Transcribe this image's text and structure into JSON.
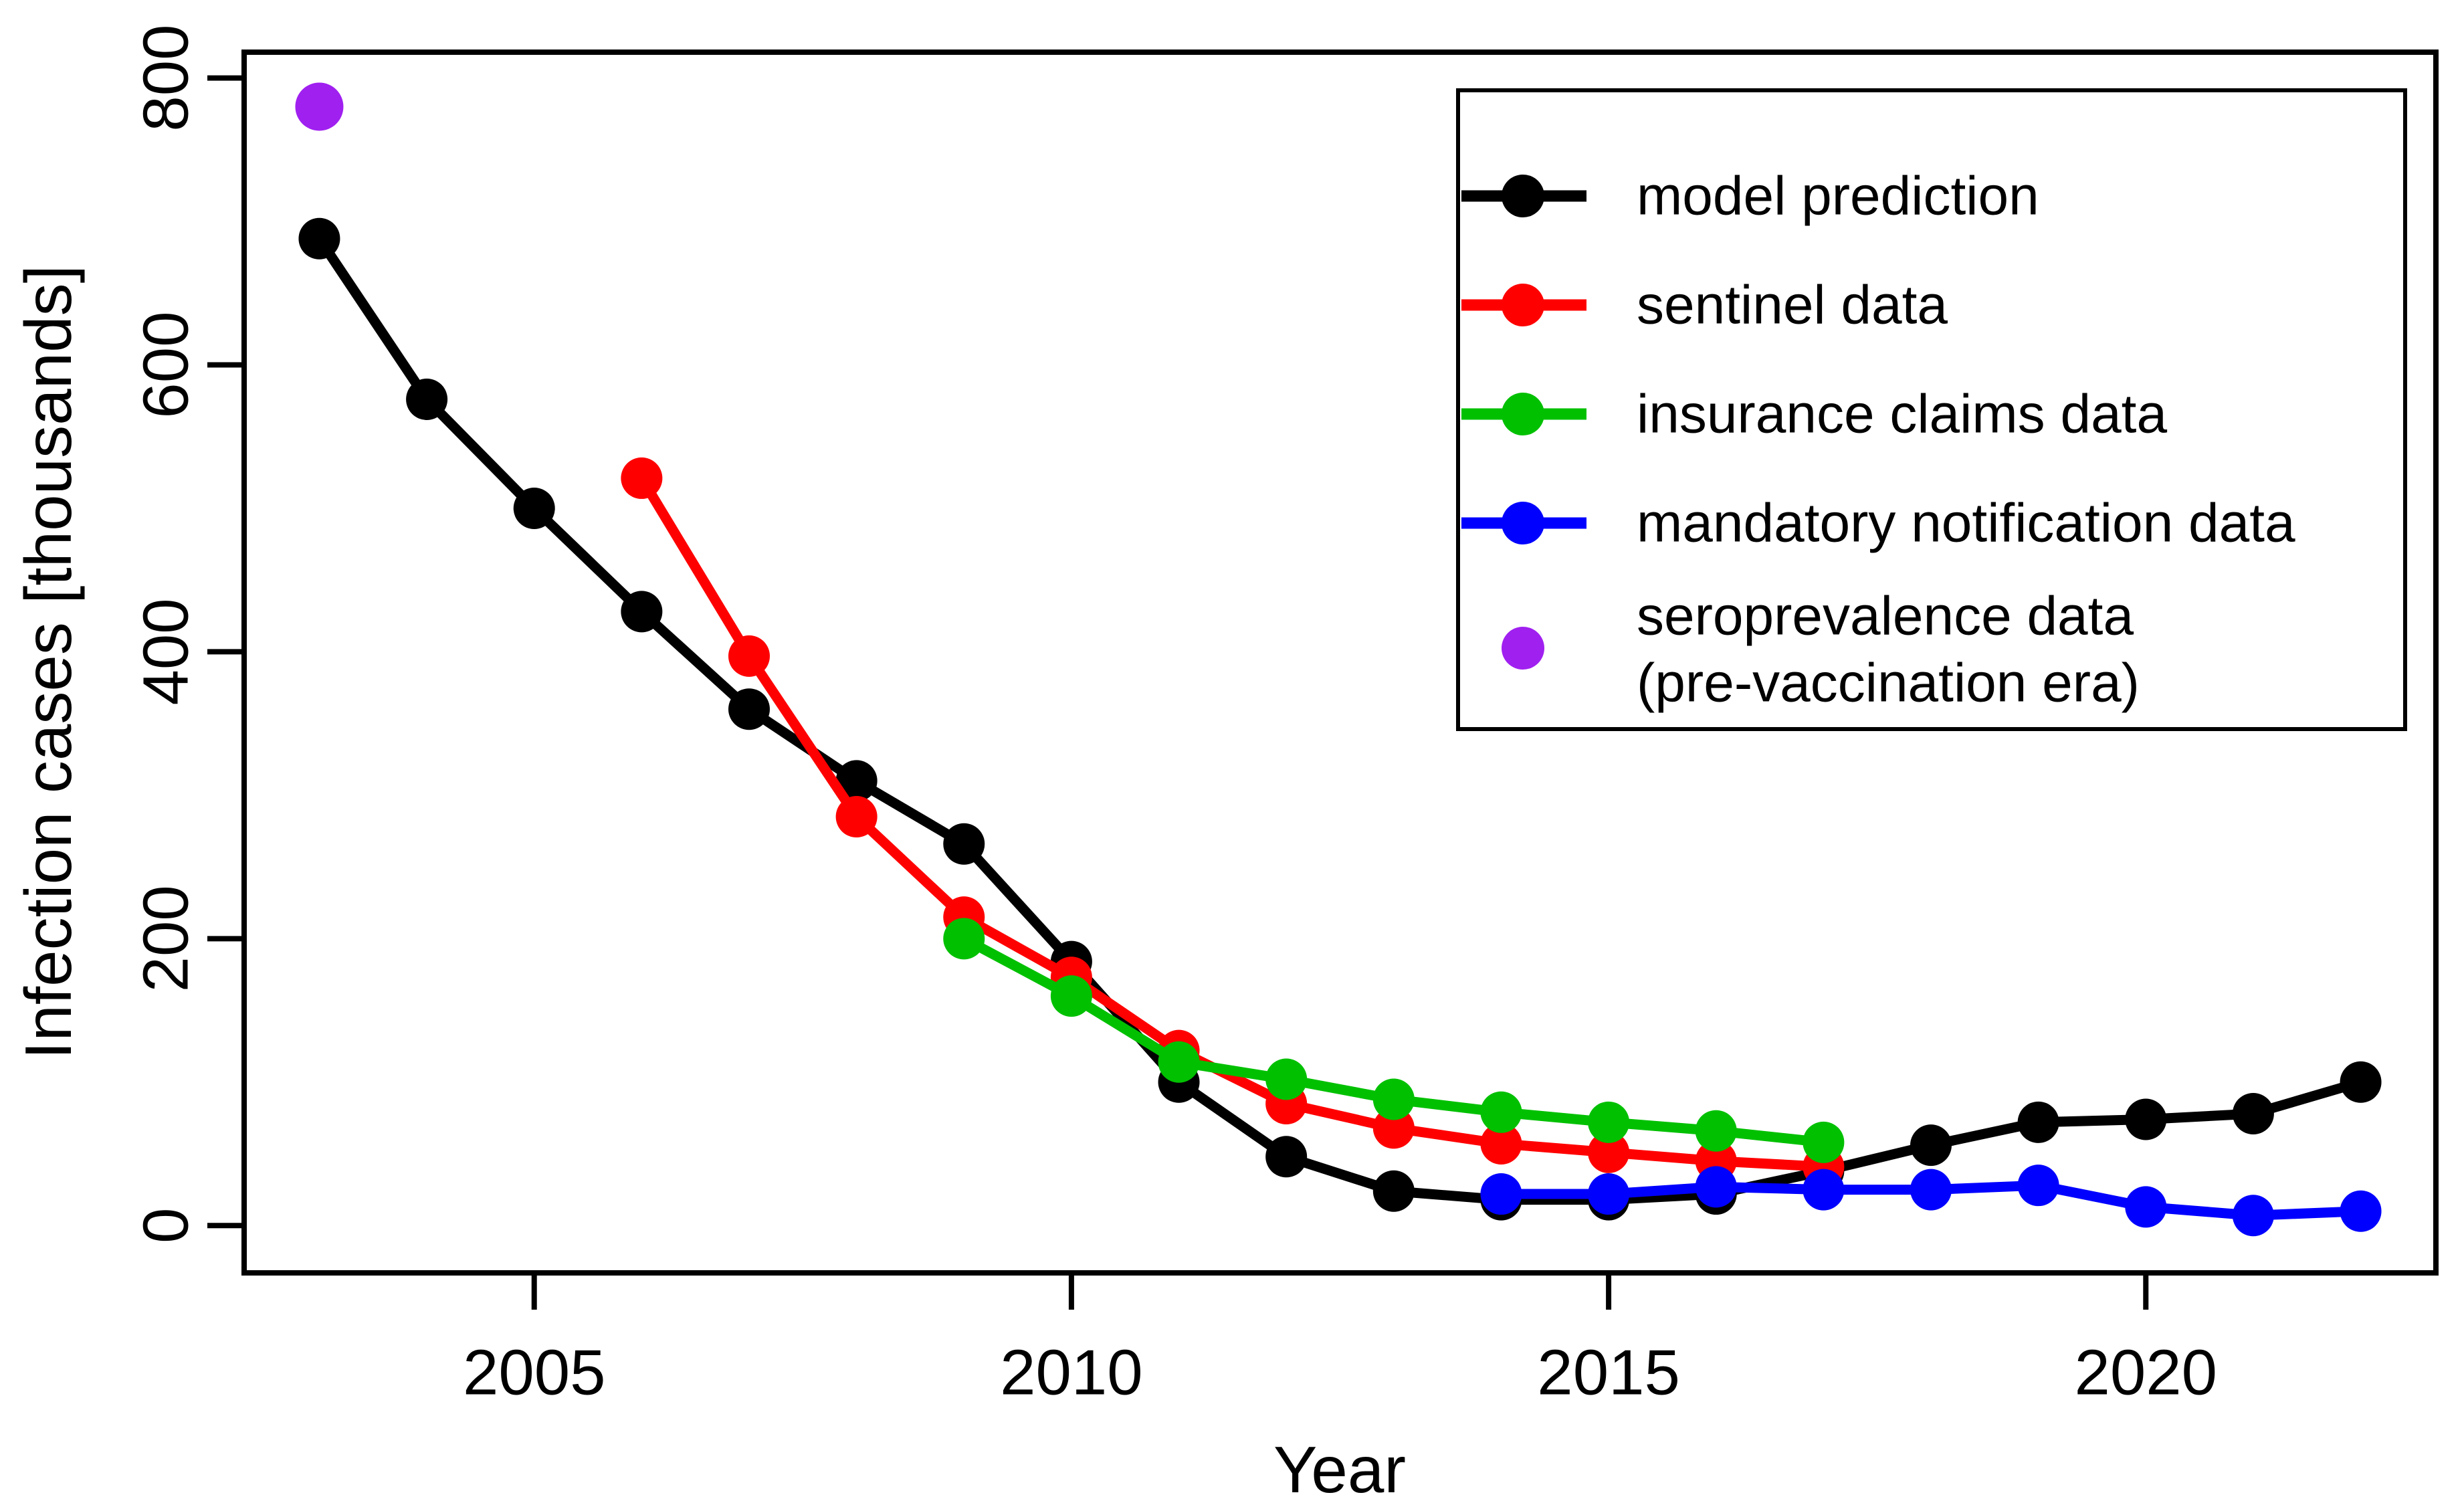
{
  "figure": {
    "background": "#FFFFFF",
    "axis_color": "#000000"
  },
  "chart_data": {
    "type": "line",
    "title": "",
    "xlabel": "Year",
    "ylabel": "Infection cases [thousands]",
    "x_ticks": [
      2005,
      2010,
      2015,
      2020
    ],
    "y_ticks": [
      0,
      200,
      400,
      600,
      800
    ],
    "xlim": [
      2002.3,
      2022.7
    ],
    "ylim": [
      -33,
      818
    ],
    "grid": false,
    "legend_position": "top-right",
    "legend": {
      "border_color": "#000000",
      "fill_color": "#FFFFFF",
      "items": [
        {
          "label": "model prediction",
          "color": "#000000",
          "marker": "circle-line"
        },
        {
          "label": "sentinel data",
          "color": "#FF0000",
          "marker": "circle-line"
        },
        {
          "label": "insurance claims data",
          "color": "#00C000",
          "marker": "circle-line"
        },
        {
          "label": "mandatory notification data",
          "color": "#0000FF",
          "marker": "circle-line"
        },
        {
          "label": "seroprevalence data",
          "label_line2": "(pre-vaccination era)",
          "color": "#A020F0",
          "marker": "circle"
        }
      ]
    },
    "series": [
      {
        "name": "model prediction",
        "color": "#000000",
        "style": "line+marker",
        "x": [
          2003,
          2004,
          2005,
          2006,
          2007,
          2008,
          2009,
          2010,
          2011,
          2012,
          2013,
          2014,
          2015,
          2016,
          2017,
          2018,
          2019,
          2020,
          2021,
          2022
        ],
        "y": [
          688,
          576,
          500,
          428,
          360,
          310,
          266,
          184,
          100,
          48,
          24,
          18,
          18,
          22,
          38,
          56,
          72,
          74,
          78,
          100
        ]
      },
      {
        "name": "sentinel data",
        "color": "#FF0000",
        "style": "line+marker",
        "x": [
          2006,
          2007,
          2008,
          2009,
          2010,
          2011,
          2012,
          2013,
          2014,
          2015,
          2016,
          2017
        ],
        "y": [
          521,
          397,
          285,
          215,
          173,
          122,
          85,
          68,
          57,
          51,
          45,
          41
        ]
      },
      {
        "name": "insurance claims data",
        "color": "#00C000",
        "style": "line+marker",
        "x": [
          2009,
          2010,
          2011,
          2012,
          2013,
          2014,
          2015,
          2016,
          2017
        ],
        "y": [
          200,
          160,
          114,
          102,
          88,
          79,
          72,
          66,
          58
        ]
      },
      {
        "name": "mandatory notification data",
        "color": "#0000FF",
        "style": "line+marker",
        "x": [
          2014,
          2015,
          2016,
          2017,
          2018,
          2019,
          2020,
          2021,
          2022
        ],
        "y": [
          22,
          22,
          27,
          25,
          25,
          28,
          13,
          7,
          10
        ]
      },
      {
        "name": "seroprevalence data (pre-vaccination era)",
        "color": "#A020F0",
        "style": "marker",
        "x": [
          2003
        ],
        "y": [
          780
        ]
      }
    ]
  }
}
